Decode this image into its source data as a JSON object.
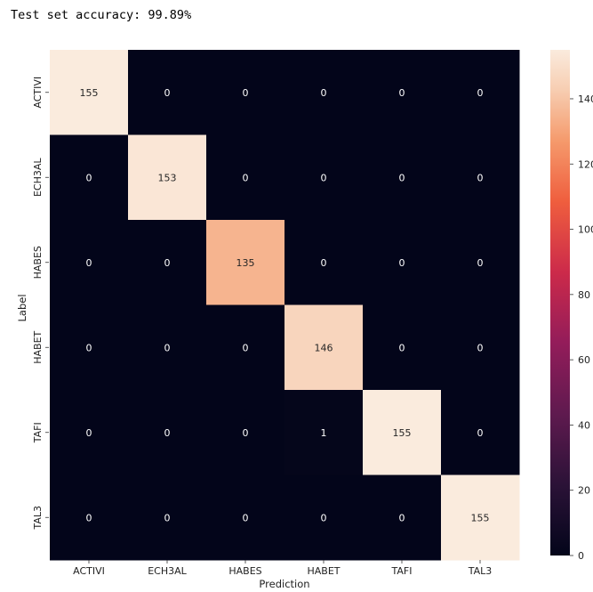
{
  "output": {
    "text": "Test set accuracy: 99.89%"
  },
  "chart_data": {
    "type": "heatmap",
    "title": "",
    "xlabel": "Prediction",
    "ylabel": "Label",
    "x_categories": [
      "ACTIVI",
      "ECH3AL",
      "HABES",
      "HABET",
      "TAFI",
      "TAL3"
    ],
    "y_categories": [
      "ACTIVI",
      "ECH3AL",
      "HABES",
      "HABET",
      "TAFI",
      "TAL3"
    ],
    "values": [
      [
        155,
        0,
        0,
        0,
        0,
        0
      ],
      [
        0,
        153,
        0,
        0,
        0,
        0
      ],
      [
        0,
        0,
        135,
        0,
        0,
        0
      ],
      [
        0,
        0,
        0,
        146,
        0,
        0
      ],
      [
        0,
        0,
        0,
        1,
        155,
        0
      ],
      [
        0,
        0,
        0,
        0,
        0,
        155
      ]
    ],
    "colorbar": {
      "min": 0,
      "max": 155,
      "ticks": [
        0,
        20,
        40,
        60,
        80,
        100,
        120,
        140
      ]
    },
    "colormap": "rocket"
  }
}
